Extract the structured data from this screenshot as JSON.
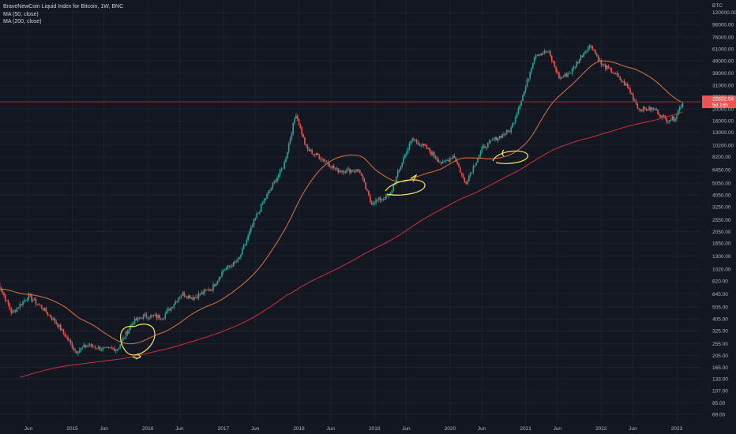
{
  "legend": {
    "title": "BraveNewCoin Liquid Index for Bitcoin, 1W, BNC",
    "ma50": "MA (50, close)",
    "ma200": "MA (200, close)"
  },
  "colors": {
    "background": "#131722",
    "grid": "#1e2230",
    "up": "#26a69a",
    "down": "#ef5350",
    "ma50": "#e0733a",
    "ma200": "#d0303a",
    "annotation": "#f5e663",
    "price_line": "#b03038"
  },
  "chart_data": {
    "type": "candlestick",
    "scale": "log",
    "currency": "BTC",
    "y_ticks": [
      "120000.00",
      "96000.00",
      "76000.00",
      "61000.00",
      "49000.00",
      "39000.00",
      "31000.00",
      "25000.00",
      "20000.00",
      "16000.00",
      "13000.00",
      "10200.00",
      "8200.00",
      "6450.00",
      "5050.00",
      "4050.00",
      "3250.00",
      "2550.00",
      "2050.00",
      "1650.00",
      "1300.00",
      "1020.00",
      "820.00",
      "645.00",
      "505.00",
      "405.00",
      "325.00",
      "255.00",
      "205.00",
      "165.00",
      "133.00",
      "107.00",
      "85.00",
      "69.00"
    ],
    "x_ticks": [
      {
        "label": "Jun",
        "t": 2014.42
      },
      {
        "label": "2015",
        "t": 2015.0
      },
      {
        "label": "Jun",
        "t": 2015.42
      },
      {
        "label": "2016",
        "t": 2016.0
      },
      {
        "label": "Jun",
        "t": 2016.42
      },
      {
        "label": "2017",
        "t": 2017.0
      },
      {
        "label": "Jun",
        "t": 2017.42
      },
      {
        "label": "2018",
        "t": 2018.0
      },
      {
        "label": "Jun",
        "t": 2018.42
      },
      {
        "label": "2019",
        "t": 2019.0
      },
      {
        "label": "Jun",
        "t": 2019.42
      },
      {
        "label": "2020",
        "t": 2020.0
      },
      {
        "label": "Jun",
        "t": 2020.42
      },
      {
        "label": "2021",
        "t": 2021.0
      },
      {
        "label": "Jun",
        "t": 2021.42
      },
      {
        "label": "2022",
        "t": 2022.0
      },
      {
        "label": "Jun",
        "t": 2022.42
      },
      {
        "label": "2023",
        "t": 2023.0
      }
    ],
    "price_anchors": [
      [
        2014.0,
        850
      ],
      [
        2014.2,
        450
      ],
      [
        2014.42,
        620
      ],
      [
        2014.6,
        500
      ],
      [
        2014.8,
        370
      ],
      [
        2015.05,
        220
      ],
      [
        2015.2,
        250
      ],
      [
        2015.42,
        230
      ],
      [
        2015.6,
        235
      ],
      [
        2015.8,
        380
      ],
      [
        2015.95,
        430
      ],
      [
        2016.2,
        420
      ],
      [
        2016.45,
        650
      ],
      [
        2016.6,
        600
      ],
      [
        2016.85,
        720
      ],
      [
        2017.0,
        1000
      ],
      [
        2017.2,
        1200
      ],
      [
        2017.42,
        2600
      ],
      [
        2017.6,
        4300
      ],
      [
        2017.8,
        7000
      ],
      [
        2017.96,
        18500
      ],
      [
        2018.1,
        9500
      ],
      [
        2018.3,
        8000
      ],
      [
        2018.5,
        6400
      ],
      [
        2018.8,
        6400
      ],
      [
        2018.95,
        3500
      ],
      [
        2019.2,
        4000
      ],
      [
        2019.4,
        8500
      ],
      [
        2019.5,
        11500
      ],
      [
        2019.7,
        9500
      ],
      [
        2019.9,
        7200
      ],
      [
        2020.05,
        8500
      ],
      [
        2020.2,
        5000
      ],
      [
        2020.42,
        9500
      ],
      [
        2020.6,
        11500
      ],
      [
        2020.8,
        13500
      ],
      [
        2021.0,
        30000
      ],
      [
        2021.12,
        55000
      ],
      [
        2021.3,
        58000
      ],
      [
        2021.45,
        35000
      ],
      [
        2021.6,
        40000
      ],
      [
        2021.8,
        61000
      ],
      [
        2021.87,
        65000
      ],
      [
        2022.0,
        46000
      ],
      [
        2022.15,
        40000
      ],
      [
        2022.35,
        30000
      ],
      [
        2022.5,
        20000
      ],
      [
        2022.7,
        20000
      ],
      [
        2022.85,
        16500
      ],
      [
        2022.97,
        16800
      ],
      [
        2023.08,
        23000
      ]
    ],
    "last_price": "22832.54",
    "last_price_sub": "5d 16h"
  }
}
